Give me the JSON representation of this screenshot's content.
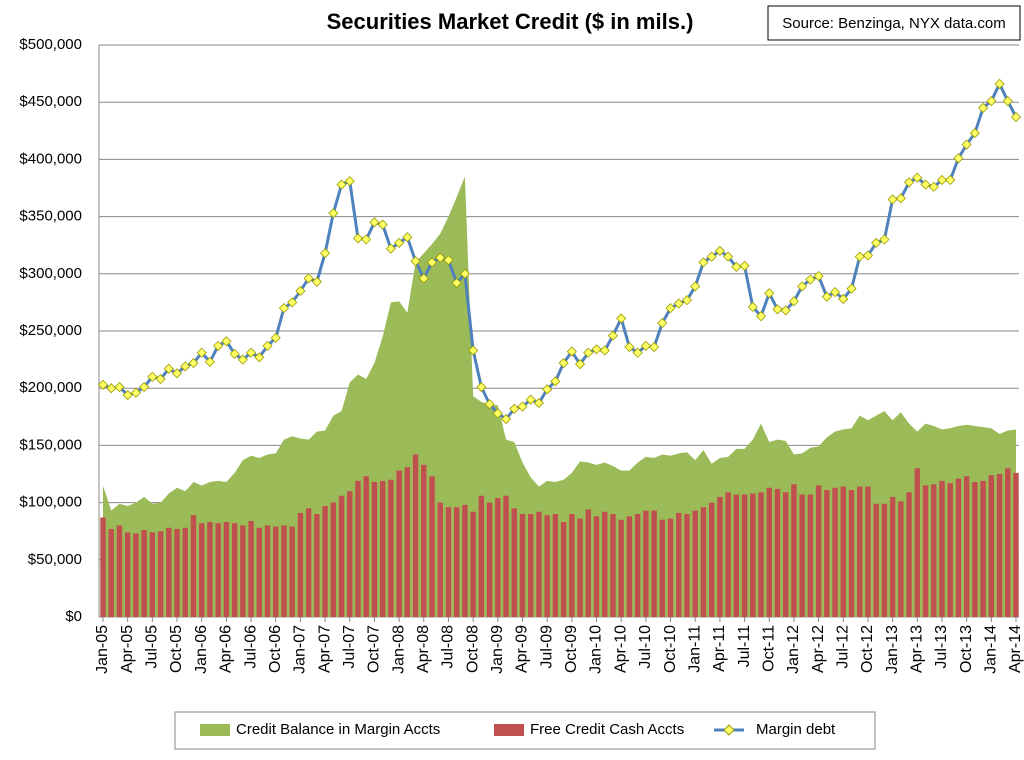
{
  "chart_data": {
    "type": "combo",
    "title": "Securities Market Credit ($ in mils.)",
    "annotations": [
      "Source: Benzinga, NYX data.com"
    ],
    "categories": [
      "Jan-05",
      null,
      null,
      "Apr-05",
      null,
      null,
      "Jul-05",
      null,
      null,
      "Oct-05",
      null,
      null,
      "Jan-06",
      null,
      null,
      "Apr-06",
      null,
      null,
      "Jul-06",
      null,
      null,
      "Oct-06",
      null,
      null,
      "Jan-07",
      null,
      null,
      "Apr-07",
      null,
      null,
      "Jul-07",
      null,
      null,
      "Oct-07",
      null,
      null,
      "Jan-08",
      null,
      null,
      "Apr-08",
      null,
      null,
      "Jul-08",
      null,
      null,
      "Oct-08",
      null,
      null,
      "Jan-09",
      null,
      null,
      "Apr-09",
      null,
      null,
      "Jul-09",
      null,
      null,
      "Oct-09",
      null,
      null,
      "Jan-10",
      null,
      null,
      "Apr-10",
      null,
      null,
      "Jul-10",
      null,
      null,
      "Oct-10",
      null,
      null,
      "Jan-11",
      null,
      null,
      "Apr-11",
      null,
      null,
      "Jul-11",
      null,
      null,
      "Oct-11",
      null,
      null,
      "Jan-12",
      null,
      null,
      "Apr-12",
      null,
      null,
      "Jul-12",
      null,
      null,
      "Oct-12",
      null,
      null,
      "Jan-13",
      null,
      null,
      "Apr-13",
      null,
      null,
      "Jul-13",
      null,
      null,
      "Oct-13",
      null,
      null,
      "Jan-14",
      null,
      null,
      "Apr-14"
    ],
    "series": [
      {
        "name": "Credit Balance in Margin Accts",
        "kind": "area",
        "color": "#9bbb59",
        "values": [
          115000,
          93000,
          99000,
          97000,
          100000,
          105000,
          99000,
          100000,
          108000,
          113000,
          110000,
          118000,
          115000,
          118000,
          119000,
          118000,
          126000,
          137000,
          141000,
          139000,
          142000,
          143000,
          155000,
          158000,
          156000,
          155000,
          162000,
          163000,
          176000,
          180000,
          205000,
          212000,
          208000,
          222000,
          245000,
          275000,
          276000,
          266000,
          310000,
          318000,
          326000,
          335000,
          350000,
          367000,
          385000,
          193000,
          188000,
          186000,
          185000,
          155000,
          153000,
          135000,
          122000,
          114000,
          119000,
          118000,
          120000,
          126000,
          136000,
          135000,
          133000,
          135000,
          132000,
          128000,
          128000,
          135000,
          140000,
          139000,
          142000,
          141000,
          143000,
          144000,
          137000,
          146000,
          134000,
          139000,
          140000,
          147000,
          147000,
          155000,
          169000,
          153000,
          155000,
          154000,
          142000,
          143000,
          148000,
          149000,
          157000,
          162000,
          164000,
          165000,
          176000,
          172000,
          176000,
          180000,
          172000,
          179000,
          169000,
          162000,
          169000,
          167000,
          164000,
          165000,
          167000,
          168000,
          167000,
          166000,
          165000,
          160000,
          163000,
          164000
        ]
      },
      {
        "name": "Free Credit Cash Accts",
        "kind": "bar",
        "color": "#c0504d",
        "values": [
          87000,
          77000,
          80000,
          74000,
          73000,
          76000,
          74000,
          75000,
          78000,
          77000,
          78000,
          89000,
          82000,
          83000,
          82000,
          83000,
          82000,
          80000,
          84000,
          78000,
          80000,
          79000,
          80000,
          79000,
          91000,
          95000,
          90000,
          97000,
          100000,
          106000,
          110000,
          119000,
          123000,
          118000,
          119000,
          120000,
          128000,
          131000,
          142000,
          133000,
          123000,
          100000,
          96000,
          96000,
          98000,
          92000,
          106000,
          100000,
          104000,
          106000,
          95000,
          90000,
          90000,
          92000,
          89000,
          90000,
          83000,
          90000,
          86000,
          94000,
          88000,
          92000,
          90000,
          85000,
          88000,
          90000,
          93000,
          93000,
          85000,
          86000,
          91000,
          90000,
          93000,
          96000,
          100000,
          105000,
          109000,
          107000,
          107000,
          108000,
          109000,
          113000,
          112000,
          109000,
          116000,
          107000,
          107000,
          115000,
          111000,
          113000,
          114000,
          111000,
          114000,
          114000,
          99000,
          99000,
          105000,
          101000,
          109000,
          130000,
          115000,
          116000,
          119000,
          117000,
          121000,
          123000,
          118000,
          119000,
          124000,
          125000,
          130000,
          126000
        ]
      },
      {
        "name": "Margin debt",
        "kind": "line",
        "color": "#4f81bd",
        "marker_color": "#ffff66",
        "values": [
          203000,
          200000,
          201000,
          194000,
          196000,
          201000,
          210000,
          208000,
          217000,
          213000,
          219000,
          222000,
          231000,
          223000,
          237000,
          241000,
          230000,
          225000,
          231000,
          227000,
          237000,
          244000,
          270000,
          275000,
          285000,
          296000,
          293000,
          318000,
          353000,
          378000,
          381000,
          331000,
          330000,
          345000,
          343000,
          322000,
          327000,
          332000,
          311000,
          296000,
          310000,
          314000,
          312000,
          292000,
          300000,
          233000,
          201000,
          186000,
          178000,
          173000,
          182000,
          184000,
          190000,
          187000,
          199000,
          206000,
          222000,
          232000,
          221000,
          231000,
          234000,
          233000,
          246000,
          261000,
          236000,
          231000,
          237000,
          236000,
          257000,
          270000,
          274000,
          277000,
          289000,
          310000,
          315000,
          320000,
          315000,
          306000,
          307000,
          271000,
          263000,
          283000,
          269000,
          268000,
          276000,
          289000,
          295000,
          298000,
          280000,
          284000,
          278000,
          287000,
          315000,
          316000,
          327000,
          330000,
          365000,
          366000,
          380000,
          384000,
          378000,
          376000,
          382000,
          382000,
          401000,
          413000,
          423000,
          445000,
          451000,
          466000,
          451000,
          437000
        ]
      }
    ],
    "ylim": [
      0,
      500000
    ],
    "yticks": [
      {
        "value": 0,
        "label": "$0"
      },
      {
        "value": 50000,
        "label": "$50,000"
      },
      {
        "value": 100000,
        "label": "$100,000"
      },
      {
        "value": 150000,
        "label": "$150,000"
      },
      {
        "value": 200000,
        "label": "$200,000"
      },
      {
        "value": 250000,
        "label": "$250,000"
      },
      {
        "value": 300000,
        "label": "$300,000"
      },
      {
        "value": 350000,
        "label": "$350,000"
      },
      {
        "value": 400000,
        "label": "$400,000"
      },
      {
        "value": 450000,
        "label": "$450,000"
      },
      {
        "value": 500000,
        "label": "$500,000"
      }
    ],
    "grid": true,
    "legend": "bottom"
  }
}
